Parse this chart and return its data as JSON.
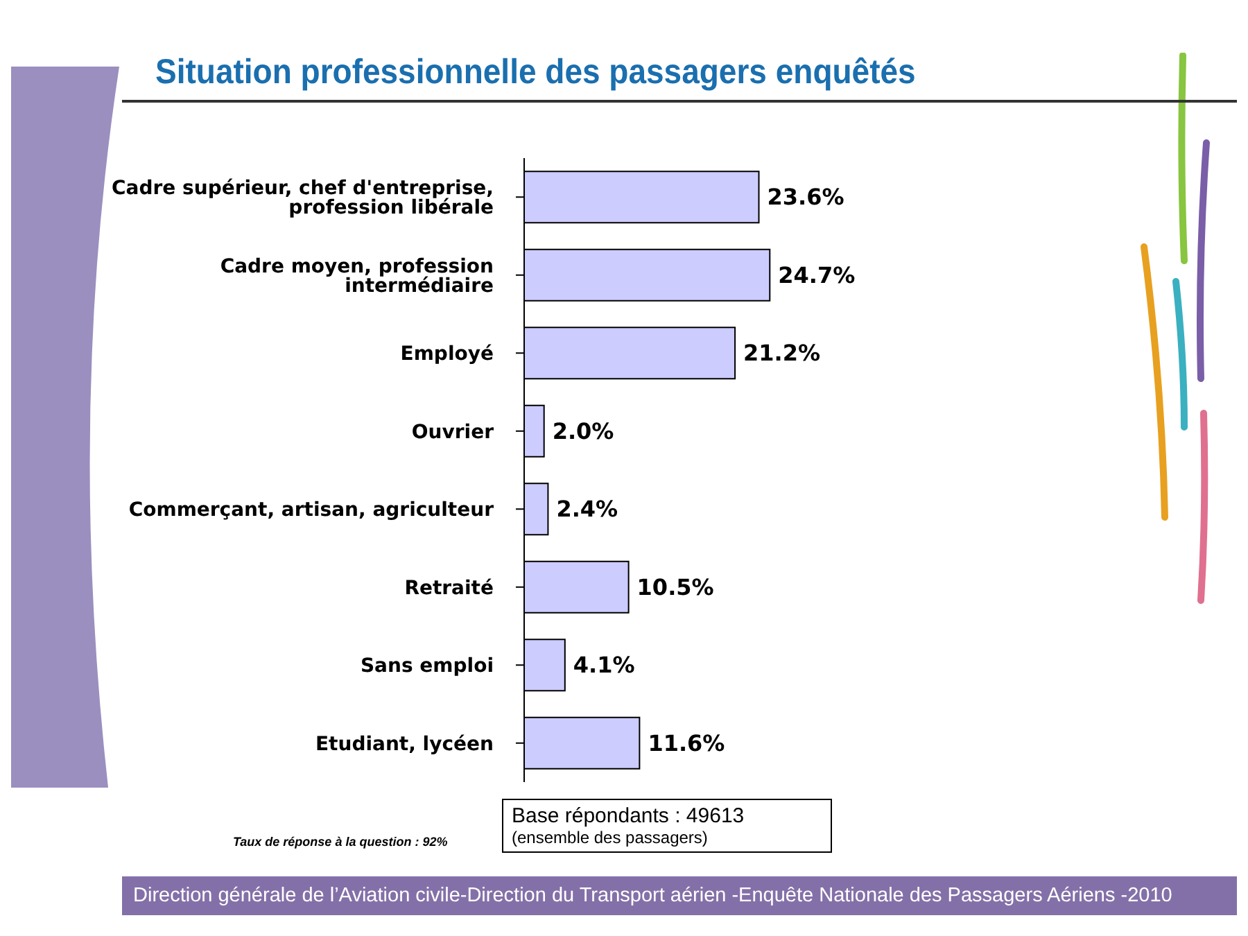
{
  "chart_data": {
    "type": "bar",
    "orientation": "horizontal",
    "title": "Situation professionnelle des passagers enquêtés",
    "categories": [
      "Cadre supérieur, chef d'entreprise, profession libérale",
      "Cadre moyen, profession intermédiaire",
      "Employé",
      "Ouvrier",
      "Commerçant, artisan, agriculteur",
      "Retraité",
      "Sans emploi",
      "Etudiant, lycéen"
    ],
    "values": [
      23.6,
      24.7,
      21.2,
      2.0,
      2.4,
      10.5,
      4.1,
      11.6
    ],
    "value_labels": [
      "23.6%",
      "24.7%",
      "21.2%",
      "2.0%",
      "2.4%",
      "10.5%",
      "4.1%",
      "11.6%"
    ],
    "color": "#ccccff",
    "annotations": [
      "Base répondants : 49613",
      "(ensemble des passagers)",
      "Taux de réponse à la question : 92%",
      "Direction générale de l’Aviation civile-Direction du Transport aérien -Enquête Nationale des Passagers Aériens -2010"
    ]
  }
}
